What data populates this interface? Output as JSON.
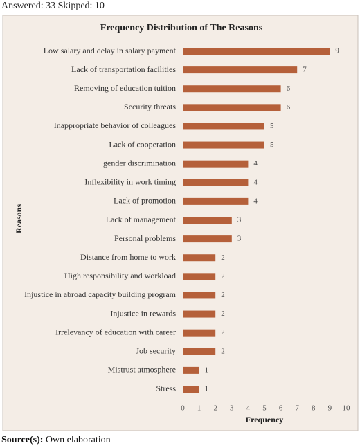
{
  "header": "Answered: 33 Skipped: 10",
  "chart_data": {
    "type": "bar",
    "orientation": "horizontal",
    "title": "Frequency Distribution of The Reasons",
    "xlabel": "Frequency",
    "ylabel": "Reasons",
    "categories": [
      "Low salary and delay in salary payment",
      "Lack of transportation facilities",
      "Removing of education tuition",
      "Security threats",
      "Inappropriate behavior of colleagues",
      "Lack of cooperation",
      "gender discrimination",
      "Inflexibility in work timing",
      "Lack of promotion",
      "Lack of management",
      "Personal problems",
      "Distance from home to work",
      "High responsibility and workload",
      "Injustice in abroad capacity building program",
      "Injustice in rewards",
      "Irrelevancy of education with career",
      "Job security",
      "Mistrust atmosphere",
      "Stress"
    ],
    "values": [
      9,
      7,
      6,
      6,
      5,
      5,
      4,
      4,
      4,
      3,
      3,
      2,
      2,
      2,
      2,
      2,
      2,
      1,
      1
    ],
    "color": "#b5603a",
    "xlim": [
      0,
      10
    ],
    "xticks": [
      0,
      1,
      2,
      3,
      4,
      5,
      6,
      7,
      8,
      9,
      10
    ],
    "grid": false
  },
  "source": {
    "label": "Source(s):",
    "text": "Own elaboration"
  }
}
